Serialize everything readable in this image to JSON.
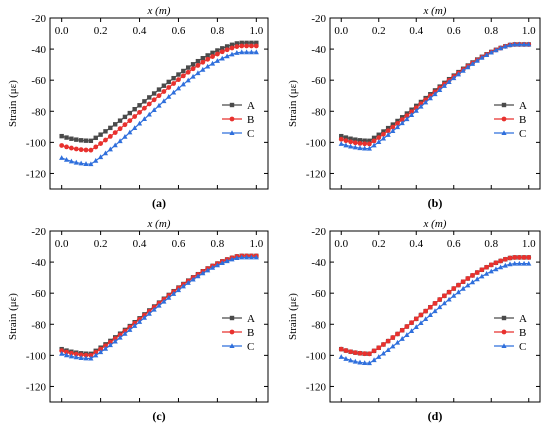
{
  "colors": {
    "A": "#4a4a4a",
    "B": "#e8312e",
    "C": "#2f6fdc"
  },
  "chart_data": [
    {
      "type": "line",
      "panel_label": "(a)",
      "xlabel": "x (m)",
      "ylabel": "Strain (με)",
      "xlim": [
        -0.06,
        1.06
      ],
      "ylim": [
        -130,
        -20
      ],
      "xticks": [
        "0.0",
        "0.2",
        "0.4",
        "0.6",
        "0.8",
        "1.0"
      ],
      "yticks": [
        "-20",
        "-40",
        "-60",
        "-80",
        "-100",
        "-120"
      ],
      "legend_position": "right",
      "series": [
        {
          "name": "A",
          "marker": "square",
          "y_start": -96,
          "y_min": -99,
          "y_end": -36
        },
        {
          "name": "B",
          "marker": "circle",
          "y_start": -102,
          "y_min": -105,
          "y_end": -38
        },
        {
          "name": "C",
          "marker": "triangle",
          "y_start": -110,
          "y_min": -114,
          "y_end": -42
        }
      ]
    },
    {
      "type": "line",
      "panel_label": "(b)",
      "xlabel": "x (m)",
      "ylabel": "Strain (με)",
      "xlim": [
        -0.06,
        1.06
      ],
      "ylim": [
        -130,
        -20
      ],
      "xticks": [
        "0.0",
        "0.2",
        "0.4",
        "0.6",
        "0.8",
        "1.0"
      ],
      "yticks": [
        "-20",
        "-40",
        "-60",
        "-80",
        "-100",
        "-120"
      ],
      "legend_position": "right",
      "series": [
        {
          "name": "A",
          "marker": "square",
          "y_start": -96,
          "y_min": -99,
          "y_end": -37
        },
        {
          "name": "B",
          "marker": "circle",
          "y_start": -98,
          "y_min": -101,
          "y_end": -37
        },
        {
          "name": "C",
          "marker": "triangle",
          "y_start": -101,
          "y_min": -104,
          "y_end": -37
        }
      ]
    },
    {
      "type": "line",
      "panel_label": "(c)",
      "xlabel": "x (m)",
      "ylabel": "Strain (με)",
      "xlim": [
        -0.06,
        1.06
      ],
      "ylim": [
        -130,
        -20
      ],
      "xticks": [
        "0.0",
        "0.2",
        "0.4",
        "0.6",
        "0.8",
        "1.0"
      ],
      "yticks": [
        "-20",
        "-40",
        "-60",
        "-80",
        "-100",
        "-120"
      ],
      "legend_position": "right",
      "series": [
        {
          "name": "A",
          "marker": "square",
          "y_start": -96,
          "y_min": -99,
          "y_end": -36
        },
        {
          "name": "B",
          "marker": "circle",
          "y_start": -97,
          "y_min": -100,
          "y_end": -36
        },
        {
          "name": "C",
          "marker": "triangle",
          "y_start": -99,
          "y_min": -102,
          "y_end": -37
        }
      ]
    },
    {
      "type": "line",
      "panel_label": "(d)",
      "xlabel": "x (m)",
      "ylabel": "Strain (με)",
      "xlim": [
        -0.06,
        1.06
      ],
      "ylim": [
        -130,
        -20
      ],
      "xticks": [
        "0.0",
        "0.2",
        "0.4",
        "0.6",
        "0.8",
        "1.0"
      ],
      "yticks": [
        "-20",
        "-40",
        "-60",
        "-80",
        "-100",
        "-120"
      ],
      "legend_position": "right",
      "series": [
        {
          "name": "A",
          "marker": "square",
          "y_start": -96,
          "y_min": -99,
          "y_end": -37
        },
        {
          "name": "B",
          "marker": "circle",
          "y_start": -96,
          "y_min": -99,
          "y_end": -37
        },
        {
          "name": "C",
          "marker": "triangle",
          "y_start": -101,
          "y_min": -105,
          "y_end": -41
        }
      ]
    }
  ]
}
